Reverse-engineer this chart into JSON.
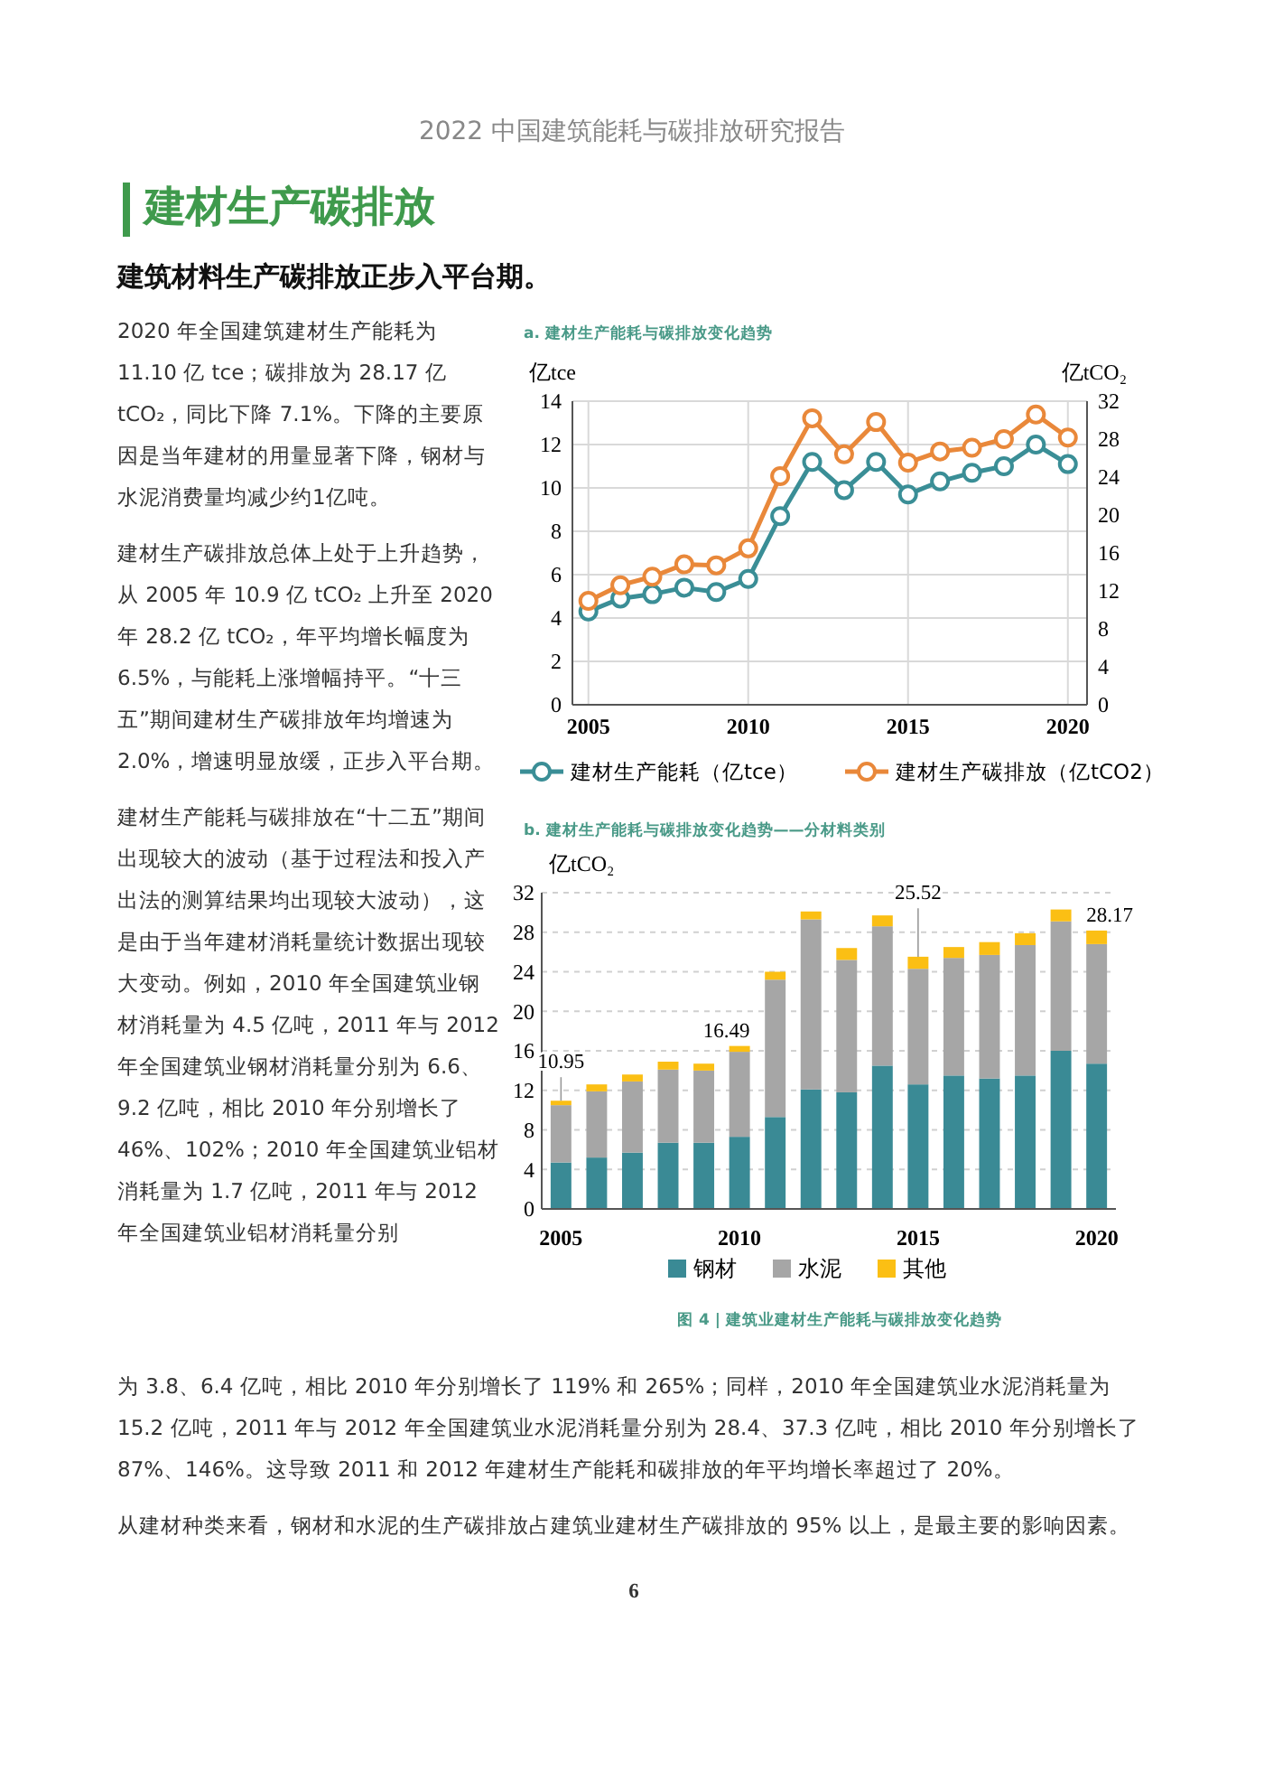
{
  "chart_data": [
    {
      "type": "line",
      "title": "a. 建材生产能耗与碳排放变化趋势",
      "ylabel": "亿tce",
      "y2label": "亿tCO₂",
      "x": [
        2005,
        2006,
        2007,
        2008,
        2009,
        2010,
        2011,
        2012,
        2013,
        2014,
        2015,
        2016,
        2017,
        2018,
        2019,
        2020
      ],
      "xlim": [
        2004.5,
        2020.6
      ],
      "xticks": [
        2005,
        2010,
        2015,
        2020
      ],
      "ylim": [
        0,
        14
      ],
      "yticks": [
        0,
        2,
        4,
        6,
        8,
        10,
        12,
        14
      ],
      "y2lim": [
        0,
        32
      ],
      "y2ticks": [
        0,
        4,
        8,
        12,
        16,
        20,
        24,
        28,
        32
      ],
      "series": [
        {
          "name": "建材生产能耗（亿tce）",
          "color": "#3a8e96",
          "values": [
            4.3,
            4.9,
            5.1,
            5.4,
            5.2,
            5.8,
            8.7,
            11.2,
            9.9,
            11.2,
            9.7,
            10.3,
            10.7,
            11.0,
            12.0,
            11.1
          ]
        },
        {
          "name": "建材生产碳排放（亿tCO2）",
          "color": "#e9883a",
          "axis": "y2",
          "values": [
            10.95,
            12.6,
            13.5,
            14.8,
            14.7,
            16.49,
            24.1,
            30.2,
            26.4,
            29.8,
            25.52,
            26.7,
            27.1,
            28.0,
            30.6,
            28.17
          ]
        }
      ],
      "grid": true,
      "legend": "bottom",
      "marker": "circle",
      "line_style": "solid",
      "annotations": [
        "2022 中国建筑能耗与碳排放研究报告",
        "建材生产碳排放",
        "建筑材料生产碳排放正步入平台期。",
        "2020 年全国建筑建材生产能耗为 11.10 亿 tce；碳排放为 28.17 亿 tCO₂，同比下降 7.1%。下降的主要原因是当年建材的用量显著下降，钢材与水泥消费量均减少约1亿吨。",
        "建材生产碳排放总体上处于上升趋势，从 2005 年 10.9 亿 tCO₂ 上升至 2020 年 28.2 亿 tCO₂，年平均增长幅度为 6.5%，与能耗上涨增幅持平。“十三五”期间建材生产碳排放年均增速为 2.0%，增速明显放缓，正步入平台期。",
        "建材生产能耗与碳排放在“十二五”期间出现较大的波动（基于过程法和投入产出法的测算结果均出现较大波动），这是由于当年建材消耗量统计数据出现较大变动。例如，2010 年全国建筑业钢材消耗量为 4.5 亿吨，2011 年与 2012 年全国建筑业钢材消耗量分别为 6.6、9.2 亿吨，相比 2010 年分别增长了 46%、102%；2010 年全国建筑业铝材消耗量为 1.7 亿吨，2011 年与 2012 年全国建筑业铝材消耗量分别"
      ]
    },
    {
      "type": "bar",
      "stacked": true,
      "title": "b. 建材生产能耗与碳排放变化趋势——分材料类别",
      "ylabel": "亿tCO₂",
      "categories": [
        "2005",
        null,
        null,
        null,
        null,
        "2010",
        null,
        null,
        null,
        null,
        "2015",
        null,
        null,
        null,
        null,
        "2020"
      ],
      "ylim": [
        0,
        32
      ],
      "yticks": [
        0,
        4,
        8,
        12,
        16,
        20,
        24,
        28,
        32
      ],
      "series": [
        {
          "name": "钢材",
          "color": "#3a8a95",
          "values": [
            4.7,
            5.2,
            5.7,
            6.7,
            6.7,
            7.3,
            9.3,
            12.1,
            11.8,
            14.5,
            12.6,
            13.5,
            13.2,
            13.5,
            16.0,
            14.7
          ]
        },
        {
          "name": "水泥",
          "color": "#a6a6a6",
          "values": [
            5.8,
            6.7,
            7.2,
            7.4,
            7.3,
            8.6,
            13.9,
            17.2,
            13.4,
            14.1,
            11.7,
            11.9,
            12.5,
            13.2,
            13.1,
            12.1
          ]
        },
        {
          "name": "其他",
          "color": "#fbbf14",
          "values": [
            0.45,
            0.7,
            0.7,
            0.8,
            0.7,
            0.59,
            0.8,
            0.8,
            1.2,
            1.1,
            1.22,
            1.1,
            1.3,
            1.2,
            1.2,
            1.37
          ]
        }
      ],
      "totals": [
        "10.95",
        null,
        null,
        null,
        null,
        "16.49",
        null,
        null,
        null,
        null,
        "25.52",
        null,
        null,
        null,
        null,
        "28.17"
      ],
      "grid": "y",
      "legend": "bottom",
      "annotations": [
        "为 3.8、6.4 亿吨，相比 2010 年分别增长了 119% 和 265%；同样，2010 年全国建筑业水泥消耗量为 15.2 亿吨，2011 年与 2012 年全国建筑业水泥消耗量分别为 28.4、37.3 亿吨，相比 2010 年分别增长了 87%、146%。这导致 2011 和 2012 年建材生产能耗和碳排放的年平均增长率超过了 20%。",
        "从建材种类来看，钢材和水泥的生产碳排放占建筑业建材生产碳排放的 95% 以上，是最主要的影响因素。",
        "图 4 | 建筑业建材生产能耗与碳排放变化趋势",
        "6"
      ]
    }
  ]
}
